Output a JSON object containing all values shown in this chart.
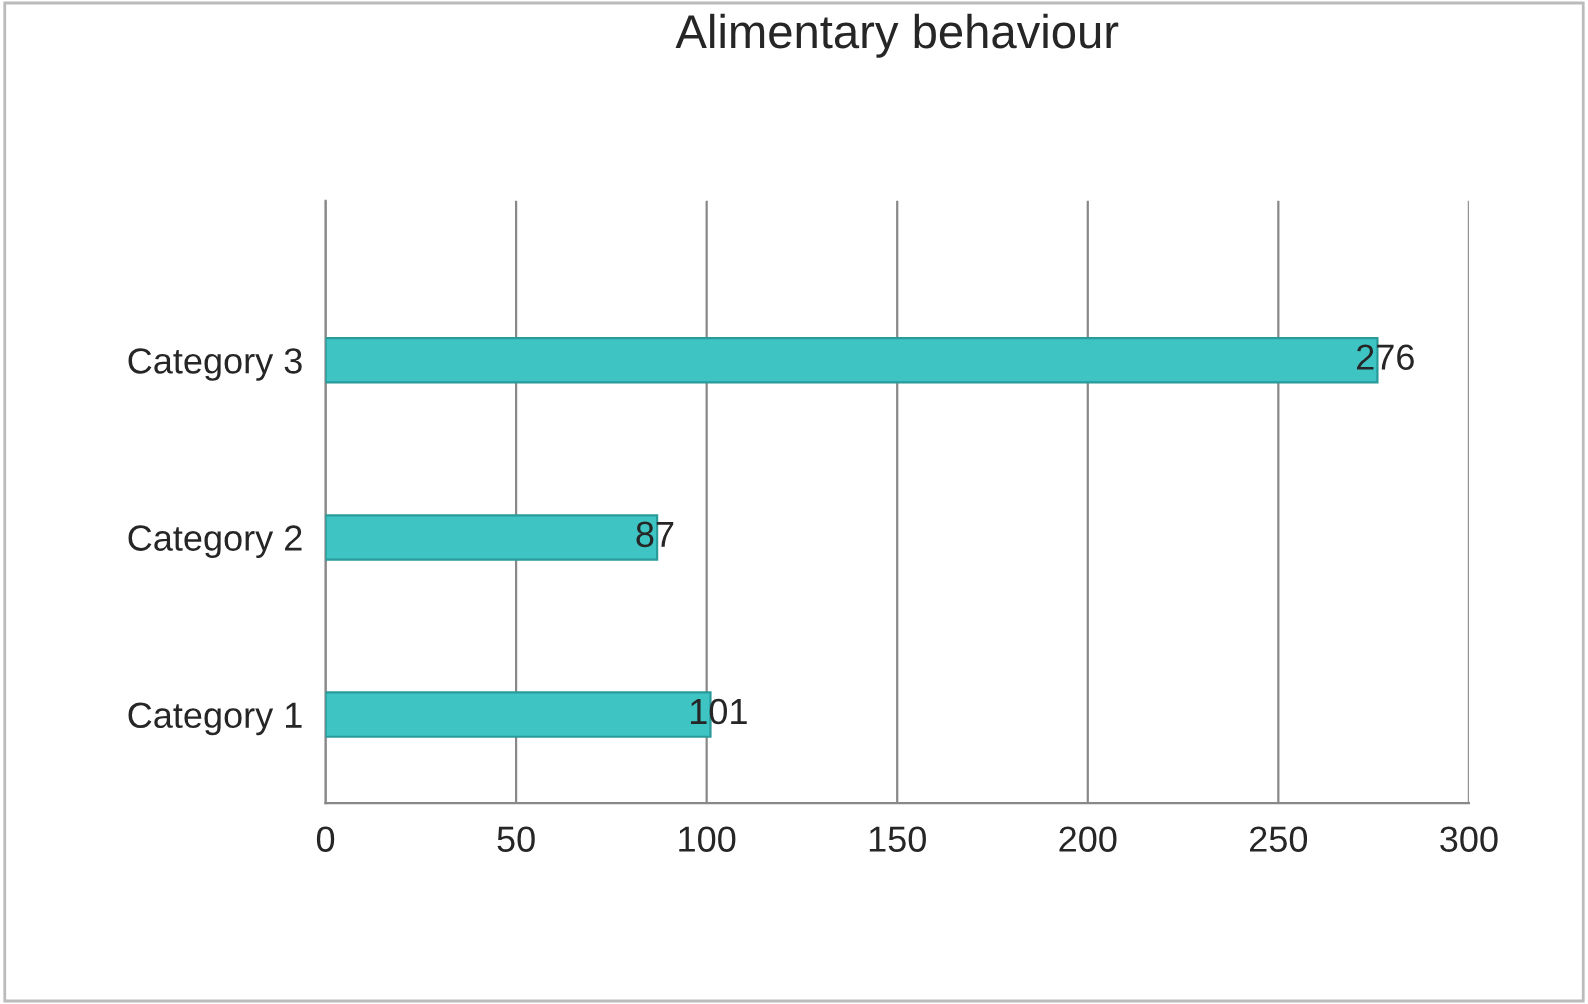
{
  "chart_data": {
    "type": "bar",
    "orientation": "horizontal",
    "title": "Alimentary behaviour",
    "categories": [
      "Category 3",
      "Category 2",
      "Category 1"
    ],
    "values": [
      276,
      87,
      101
    ],
    "color": "#3fc4c4",
    "xlim": [
      0,
      300
    ],
    "xticks": [
      0,
      50,
      100,
      150,
      200,
      250,
      300
    ],
    "grid": "x",
    "data_labels": true
  }
}
